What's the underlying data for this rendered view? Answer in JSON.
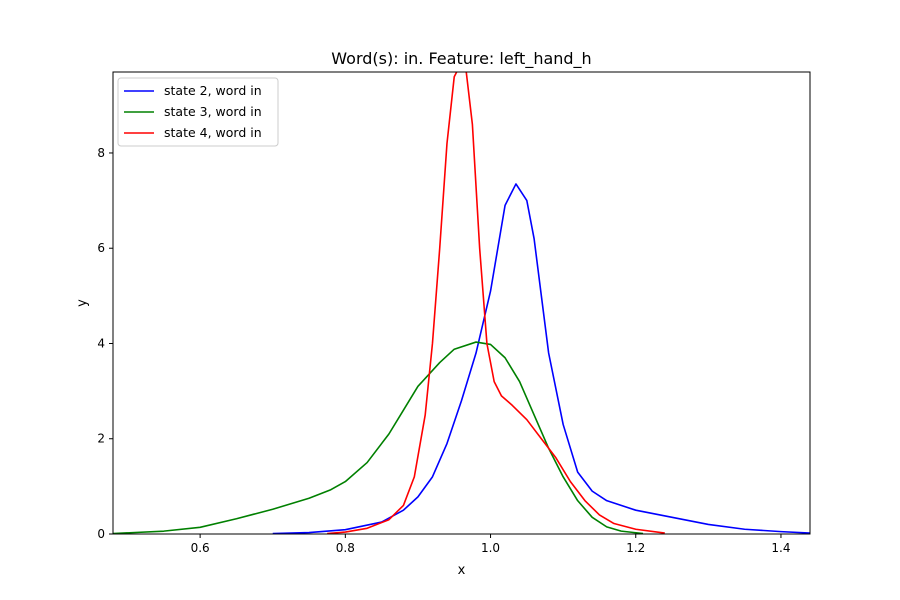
{
  "chart_data": {
    "type": "line",
    "title": "Word(s): in. Feature: left_hand_h",
    "xlabel": "x",
    "ylabel": "y",
    "xlim": [
      0.48,
      1.44
    ],
    "ylim": [
      0,
      9.7
    ],
    "xticks": [
      0.6,
      0.8,
      1.0,
      1.2,
      1.4
    ],
    "xtick_labels": [
      "0.6",
      "0.8",
      "1.0",
      "1.2",
      "1.4"
    ],
    "yticks": [
      0,
      2,
      4,
      6,
      8
    ],
    "ytick_labels": [
      "0",
      "2",
      "4",
      "6",
      "8"
    ],
    "grid": false,
    "legend_position": "upper-left",
    "series": [
      {
        "name": "state 2, word in",
        "color": "#0000ff",
        "points": [
          [
            0.7,
            0.01
          ],
          [
            0.75,
            0.03
          ],
          [
            0.8,
            0.09
          ],
          [
            0.85,
            0.25
          ],
          [
            0.88,
            0.5
          ],
          [
            0.9,
            0.78
          ],
          [
            0.92,
            1.2
          ],
          [
            0.94,
            1.9
          ],
          [
            0.96,
            2.8
          ],
          [
            0.98,
            3.8
          ],
          [
            1.0,
            5.1
          ],
          [
            1.01,
            6.0
          ],
          [
            1.02,
            6.9
          ],
          [
            1.035,
            7.35
          ],
          [
            1.05,
            7.0
          ],
          [
            1.06,
            6.2
          ],
          [
            1.07,
            5.0
          ],
          [
            1.08,
            3.8
          ],
          [
            1.1,
            2.3
          ],
          [
            1.12,
            1.3
          ],
          [
            1.14,
            0.9
          ],
          [
            1.16,
            0.7
          ],
          [
            1.2,
            0.5
          ],
          [
            1.25,
            0.35
          ],
          [
            1.3,
            0.2
          ],
          [
            1.35,
            0.1
          ],
          [
            1.4,
            0.05
          ],
          [
            1.44,
            0.02
          ]
        ]
      },
      {
        "name": "state 3, word in",
        "color": "#008000",
        "points": [
          [
            0.48,
            0.01
          ],
          [
            0.55,
            0.06
          ],
          [
            0.6,
            0.14
          ],
          [
            0.65,
            0.32
          ],
          [
            0.7,
            0.52
          ],
          [
            0.75,
            0.75
          ],
          [
            0.78,
            0.93
          ],
          [
            0.8,
            1.1
          ],
          [
            0.83,
            1.5
          ],
          [
            0.86,
            2.1
          ],
          [
            0.88,
            2.6
          ],
          [
            0.9,
            3.1
          ],
          [
            0.93,
            3.6
          ],
          [
            0.95,
            3.88
          ],
          [
            0.98,
            4.03
          ],
          [
            1.0,
            3.98
          ],
          [
            1.02,
            3.7
          ],
          [
            1.04,
            3.2
          ],
          [
            1.06,
            2.5
          ],
          [
            1.08,
            1.8
          ],
          [
            1.1,
            1.2
          ],
          [
            1.12,
            0.7
          ],
          [
            1.14,
            0.35
          ],
          [
            1.16,
            0.15
          ],
          [
            1.18,
            0.06
          ],
          [
            1.21,
            0.01
          ]
        ]
      },
      {
        "name": "state 4, word in",
        "color": "#ff0000",
        "points": [
          [
            0.775,
            0.01
          ],
          [
            0.8,
            0.04
          ],
          [
            0.83,
            0.12
          ],
          [
            0.86,
            0.3
          ],
          [
            0.88,
            0.6
          ],
          [
            0.895,
            1.2
          ],
          [
            0.91,
            2.5
          ],
          [
            0.92,
            4.0
          ],
          [
            0.93,
            6.0
          ],
          [
            0.94,
            8.2
          ],
          [
            0.95,
            9.6
          ],
          [
            0.96,
            9.9
          ],
          [
            0.965,
            9.9
          ],
          [
            0.975,
            8.6
          ],
          [
            0.985,
            6.0
          ],
          [
            0.995,
            4.0
          ],
          [
            1.005,
            3.2
          ],
          [
            1.015,
            2.9
          ],
          [
            1.03,
            2.7
          ],
          [
            1.05,
            2.4
          ],
          [
            1.07,
            2.0
          ],
          [
            1.09,
            1.6
          ],
          [
            1.11,
            1.1
          ],
          [
            1.13,
            0.7
          ],
          [
            1.15,
            0.4
          ],
          [
            1.17,
            0.22
          ],
          [
            1.2,
            0.1
          ],
          [
            1.24,
            0.02
          ]
        ]
      }
    ]
  }
}
